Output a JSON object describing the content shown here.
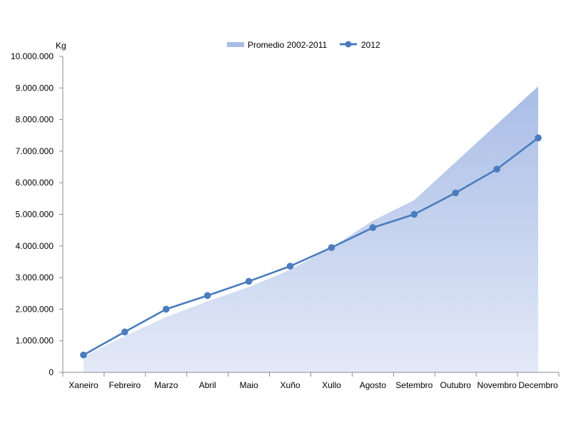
{
  "chart_data": {
    "type": "line",
    "title": "",
    "xlabel": "",
    "ylabel": "Kg",
    "ylim": [
      0,
      10000000
    ],
    "y_ticks": [
      0,
      1000000,
      2000000,
      3000000,
      4000000,
      5000000,
      6000000,
      7000000,
      8000000,
      9000000,
      10000000
    ],
    "y_tick_labels": [
      "0",
      "1.000.000",
      "2.000.000",
      "3.000.000",
      "4.000.000",
      "5.000.000",
      "6.000.000",
      "7.000.000",
      "8.000.000",
      "9.000.000",
      "10.000.000"
    ],
    "grid": false,
    "legend_position": "top",
    "categories": [
      "Xaneiro",
      "Febreiro",
      "Marzo",
      "Abril",
      "Maio",
      "Xuño",
      "Xullo",
      "Agosto",
      "Setembro",
      "Outubro",
      "Novembro",
      "Decembro"
    ],
    "series": [
      {
        "name": "Promedio 2002-2011",
        "type": "area",
        "color": "#A9BDE6",
        "values": [
          500000,
          1150000,
          1750000,
          2250000,
          2700000,
          3250000,
          3950000,
          4800000,
          5450000,
          6650000,
          7850000,
          9050000
        ]
      },
      {
        "name": "2012",
        "type": "line",
        "color": "#4A7CBE",
        "values": [
          550000,
          1280000,
          2000000,
          2430000,
          2880000,
          3360000,
          3950000,
          4580000,
          5000000,
          5680000,
          6430000,
          7420000
        ]
      }
    ]
  }
}
